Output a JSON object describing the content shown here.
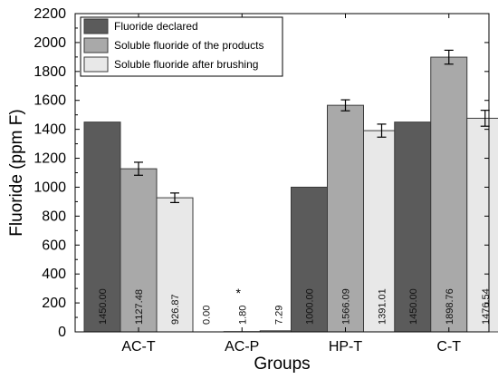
{
  "chart_data": {
    "type": "bar",
    "categories": [
      "AC-T",
      "AC-P",
      "HP-T",
      "C-T"
    ],
    "series": [
      {
        "name": "Fluoride declared",
        "color": "#5b5b5b",
        "values": [
          1450.0,
          0.0,
          1000.0,
          1450.0
        ],
        "labels": [
          "1450.00",
          "0.00",
          "1000.00",
          "1450.00"
        ],
        "errors": [
          null,
          null,
          null,
          null
        ]
      },
      {
        "name": "Soluble fluoride of the products",
        "color": "#a9a9a9",
        "values": [
          1127.48,
          1.8,
          1566.09,
          1898.76
        ],
        "labels": [
          "1127.48",
          "1.80",
          "1566.09",
          "1898.76"
        ],
        "errors": [
          45,
          null,
          38,
          48
        ]
      },
      {
        "name": "Soluble fluoride after brushing",
        "color": "#e8e8e8",
        "values": [
          926.87,
          7.29,
          1391.01,
          1476.54
        ],
        "labels": [
          "926.87",
          "7.29",
          "1391.01",
          "1476.54"
        ],
        "errors": [
          33,
          null,
          45,
          55
        ]
      }
    ],
    "xlabel": "Groups",
    "ylabel": "Fluoride (ppm F)",
    "ylim": [
      0,
      2200
    ],
    "yticks": [
      0,
      200,
      400,
      600,
      800,
      1000,
      1200,
      1400,
      1600,
      1800,
      2000,
      2200
    ],
    "legend_position": "top-left",
    "grid": false,
    "annotations": [
      {
        "text": "*",
        "category": "AC-P",
        "value": 300
      }
    ]
  }
}
